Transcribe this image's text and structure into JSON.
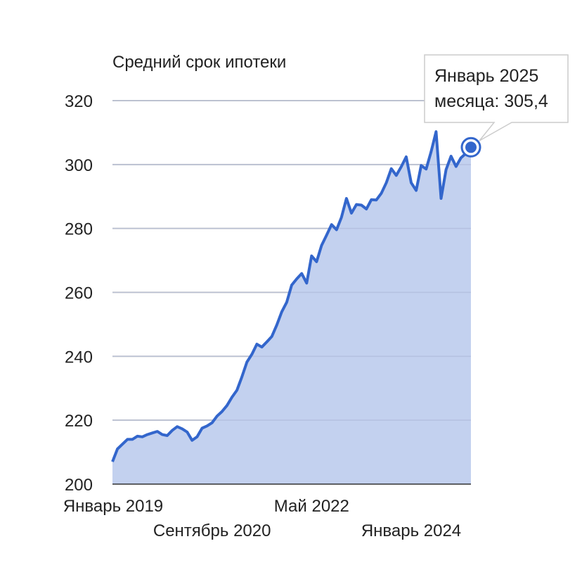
{
  "chart_data": {
    "type": "area",
    "title": "Средний срок ипотеки",
    "xlabel": "",
    "ylabel": "",
    "ylim": [
      200,
      330
    ],
    "y_ticks": [
      200,
      220,
      240,
      260,
      280,
      300,
      320
    ],
    "x_tick_labels": [
      "Январь 2019",
      "Сентябрь 2020",
      "Май 2022",
      "Январь 2024"
    ],
    "grid": true,
    "colors": {
      "line": "#3366cc",
      "fill": "#c3d1ef",
      "grid": "#cccccc"
    },
    "series": [
      {
        "x": [
          "2019-01",
          "2019-02",
          "2019-03",
          "2019-04",
          "2019-05",
          "2019-06",
          "2019-07",
          "2019-08",
          "2019-09",
          "2019-10",
          "2019-11",
          "2019-12",
          "2020-01",
          "2020-02",
          "2020-03",
          "2020-04",
          "2020-05",
          "2020-06",
          "2020-07",
          "2020-08",
          "2020-09",
          "2020-10",
          "2020-11",
          "2020-12",
          "2021-01",
          "2021-02",
          "2021-03",
          "2021-04",
          "2021-05",
          "2021-06",
          "2021-07",
          "2021-08",
          "2021-09",
          "2021-10",
          "2021-11",
          "2021-12",
          "2022-01",
          "2022-02",
          "2022-03",
          "2022-04",
          "2022-05",
          "2022-06",
          "2022-07",
          "2022-08",
          "2022-09",
          "2022-10",
          "2022-11",
          "2022-12",
          "2023-01",
          "2023-02",
          "2023-03",
          "2023-04",
          "2023-05",
          "2023-06",
          "2023-07",
          "2023-08",
          "2023-09",
          "2023-10",
          "2023-11",
          "2023-12",
          "2024-01",
          "2024-02",
          "2024-03",
          "2024-04",
          "2024-05",
          "2024-06",
          "2024-07",
          "2024-08",
          "2024-09",
          "2024-10",
          "2024-11",
          "2024-12",
          "2025-01"
        ],
        "values": [
          207.0,
          211.0,
          212.5,
          214.0,
          214.0,
          215.0,
          214.8,
          215.5,
          216.0,
          216.5,
          215.5,
          215.2,
          216.8,
          218.0,
          217.3,
          216.3,
          213.7,
          214.8,
          217.5,
          218.2,
          219.2,
          221.3,
          222.7,
          224.6,
          227.2,
          229.4,
          233.6,
          238.2,
          240.6,
          243.8,
          242.9,
          244.5,
          246.2,
          249.8,
          253.9,
          256.9,
          262.3,
          264.2,
          265.9,
          262.9,
          271.4,
          269.6,
          274.7,
          277.9,
          281.2,
          279.6,
          283.5,
          289.4,
          284.8,
          287.5,
          287.3,
          286.1,
          289.0,
          288.9,
          291.0,
          294.3,
          298.7,
          296.6,
          299.3,
          302.4,
          294.3,
          291.9,
          299.7,
          298.6,
          304.0,
          310.3,
          289.4,
          298.4,
          302.6,
          299.4,
          302.1,
          303.5,
          305.4
        ]
      }
    ],
    "tooltip": {
      "date": "Январь 2025",
      "label": "месяца: 305,4",
      "value": 305.4
    }
  }
}
